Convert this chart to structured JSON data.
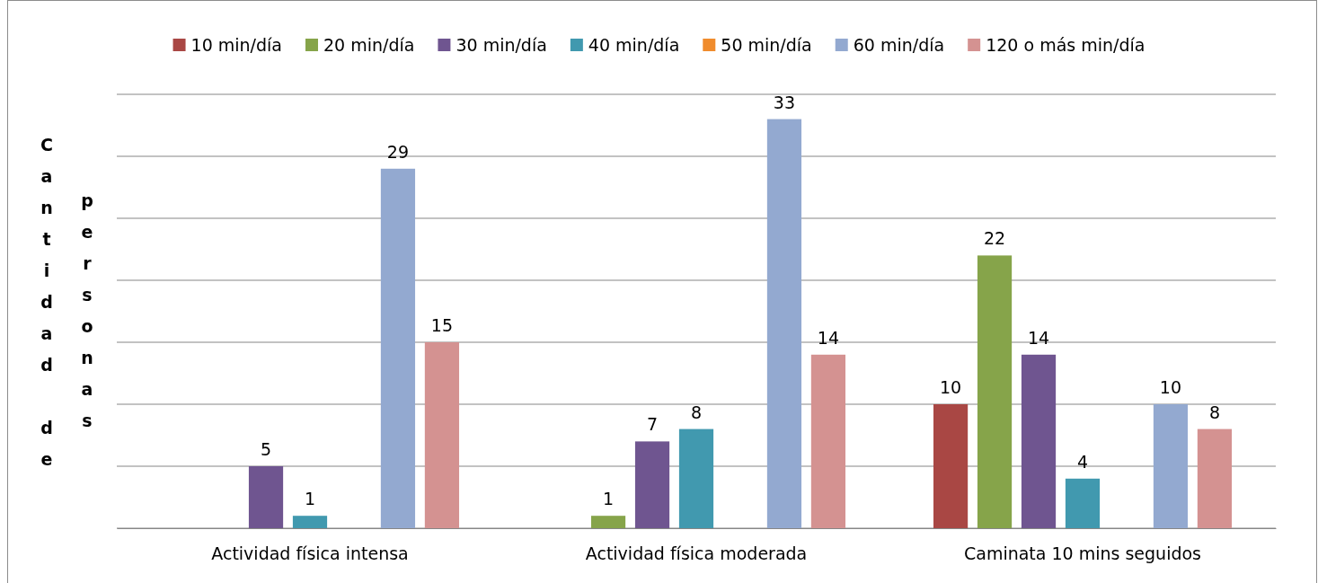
{
  "chart_data": {
    "type": "bar",
    "ylabel": "Cantidad de personas",
    "categories": [
      "Actividad física intensa",
      "Actividad física moderada",
      "Caminata 10 mins seguidos"
    ],
    "series": [
      {
        "name": "10 min/día",
        "color": "#a94744",
        "values": [
          null,
          null,
          10
        ]
      },
      {
        "name": "20 min/día",
        "color": "#86a44a",
        "values": [
          null,
          1,
          22
        ]
      },
      {
        "name": "30 min/día",
        "color": "#6f5590",
        "values": [
          5,
          7,
          14
        ]
      },
      {
        "name": "40 min/día",
        "color": "#4199af",
        "values": [
          1,
          8,
          4
        ]
      },
      {
        "name": "50 min/día",
        "color": "#f08c2d",
        "values": [
          null,
          null,
          null
        ]
      },
      {
        "name": "60 min/día",
        "color": "#93a9d0",
        "values": [
          29,
          33,
          10
        ]
      },
      {
        "name": "120 o más min/día",
        "color": "#d49291",
        "values": [
          15,
          14,
          8
        ]
      }
    ],
    "ylim": [
      0,
      35
    ],
    "yticks": [
      {
        "value": 0,
        "label": null
      },
      {
        "value": 5,
        "label": null
      },
      {
        "value": 10,
        "label": null
      },
      {
        "value": 15,
        "label": null
      },
      {
        "value": 20,
        "label": null
      },
      {
        "value": 25,
        "label": null
      },
      {
        "value": 30,
        "label": null
      },
      {
        "value": 35,
        "label": null
      }
    ],
    "tick_labels": "x",
    "grid": "y",
    "legend": "top",
    "data_labels": true
  }
}
